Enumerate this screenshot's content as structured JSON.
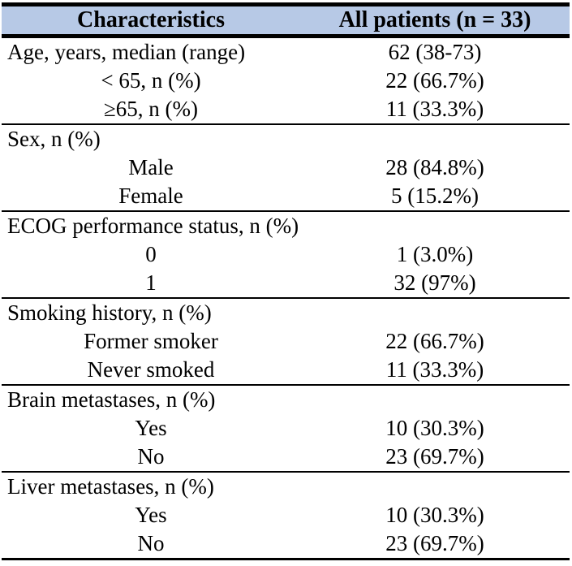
{
  "table": {
    "colors": {
      "header_bg": "#b7c9e6",
      "rule": "#000000",
      "text": "#000000"
    },
    "header": {
      "col1": "Characteristics",
      "col2": "All patients (n = 33)"
    },
    "sections": [
      {
        "rows": [
          {
            "label": "Age, years, median (range)",
            "value": "62 (38-73)"
          },
          {
            "label": "< 65, n (%)",
            "value": "22 (66.7%)"
          },
          {
            "label": "≥65, n (%)",
            "value": "11 (33.3%)"
          }
        ]
      },
      {
        "rows": [
          {
            "label": "Sex, n (%)",
            "value": ""
          },
          {
            "label": "Male",
            "value": "28 (84.8%)"
          },
          {
            "label": "Female",
            "value": "5 (15.2%)"
          }
        ]
      },
      {
        "rows": [
          {
            "label": "ECOG performance status, n (%)",
            "value": ""
          },
          {
            "label": "0",
            "value": "1 (3.0%)"
          },
          {
            "label": "1",
            "value": "32 (97%)"
          }
        ]
      },
      {
        "rows": [
          {
            "label": "Smoking history, n (%)",
            "value": ""
          },
          {
            "label": "Former smoker",
            "value": "22 (66.7%)"
          },
          {
            "label": "Never smoked",
            "value": "11 (33.3%)"
          }
        ]
      },
      {
        "rows": [
          {
            "label": "Brain metastases, n (%)",
            "value": ""
          },
          {
            "label": "Yes",
            "value": "10 (30.3%)"
          },
          {
            "label": "No",
            "value": "23 (69.7%)"
          }
        ]
      },
      {
        "rows": [
          {
            "label": "Liver metastases, n (%)",
            "value": ""
          },
          {
            "label": "Yes",
            "value": "10 (30.3%)"
          },
          {
            "label": "No",
            "value": "23 (69.7%)"
          }
        ]
      }
    ]
  }
}
